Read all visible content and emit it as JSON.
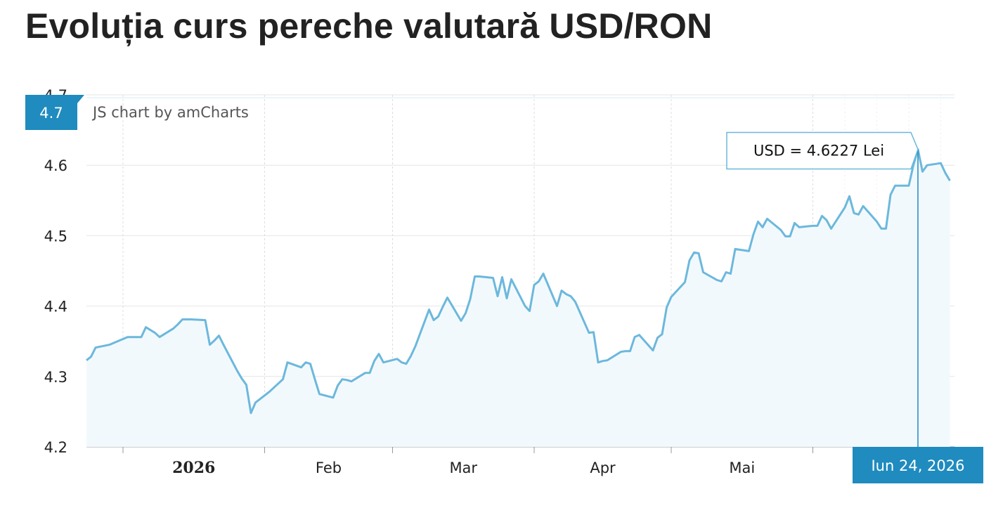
{
  "title": "Evoluția curs pereche valutară USD/RON",
  "credit": "JS chart by amCharts",
  "colors": {
    "line": "#6cb8dc",
    "fill": "#f2f9fd",
    "cursor": "#1f8bbf",
    "grid": "#e6e6e6",
    "axis": "#999999"
  },
  "chart_data": {
    "type": "area",
    "title": "Evoluția curs pereche valutară USD/RON",
    "xlabel": "",
    "ylabel": "",
    "ylim": [
      4.2,
      4.7
    ],
    "y_ticks": [
      4.2,
      4.3,
      4.4,
      4.5,
      4.6,
      4.7
    ],
    "y_tick_labels": [
      "4.2",
      "4.3",
      "4.4",
      "4.5",
      "4.6",
      "4.7"
    ],
    "xlim": [
      "2025-12-24",
      "2026-07-02"
    ],
    "x_ticks": [
      {
        "date": "2026-01-01",
        "label": "2026",
        "bold": true
      },
      {
        "date": "2026-02-01",
        "label": "Feb",
        "bold": false
      },
      {
        "date": "2026-03-01",
        "label": "Mar",
        "bold": false
      },
      {
        "date": "2026-04-01",
        "label": "Apr",
        "bold": false
      },
      {
        "date": "2026-05-01",
        "label": "Mai",
        "bold": false
      },
      {
        "date": "2026-06-01",
        "label": "Iun",
        "bold": false
      }
    ],
    "grid": true,
    "series": [
      {
        "name": "USD",
        "x": [
          "2025-12-24",
          "2025-12-25",
          "2025-12-26",
          "2025-12-29",
          "2026-01-02",
          "2026-01-05",
          "2026-01-06",
          "2026-01-08",
          "2026-01-09",
          "2026-01-12",
          "2026-01-13",
          "2026-01-14",
          "2026-01-15",
          "2026-01-16",
          "2026-01-19",
          "2026-01-20",
          "2026-01-21",
          "2026-01-22",
          "2026-01-23",
          "2026-01-26",
          "2026-01-27",
          "2026-01-28",
          "2026-01-29",
          "2026-01-30",
          "2026-02-02",
          "2026-02-03",
          "2026-02-04",
          "2026-02-05",
          "2026-02-06",
          "2026-02-09",
          "2026-02-10",
          "2026-02-11",
          "2026-02-12",
          "2026-02-13",
          "2026-02-16",
          "2026-02-17",
          "2026-02-18",
          "2026-02-19",
          "2026-02-20",
          "2026-02-23",
          "2026-02-24",
          "2026-02-25",
          "2026-02-26",
          "2026-02-27",
          "2026-03-02",
          "2026-03-03",
          "2026-03-04",
          "2026-03-05",
          "2026-03-06",
          "2026-03-09",
          "2026-03-10",
          "2026-03-11",
          "2026-03-12",
          "2026-03-13",
          "2026-03-16",
          "2026-03-17",
          "2026-03-18",
          "2026-03-19",
          "2026-03-20",
          "2026-03-23",
          "2026-03-24",
          "2026-03-25",
          "2026-03-26",
          "2026-03-27",
          "2026-03-30",
          "2026-03-31",
          "2026-04-01",
          "2026-04-02",
          "2026-04-03",
          "2026-04-06",
          "2026-04-07",
          "2026-04-08",
          "2026-04-09",
          "2026-04-10",
          "2026-04-13",
          "2026-04-14",
          "2026-04-15",
          "2026-04-16",
          "2026-04-17",
          "2026-04-20",
          "2026-04-21",
          "2026-04-22",
          "2026-04-23",
          "2026-04-24",
          "2026-04-27",
          "2026-04-28",
          "2026-04-29",
          "2026-04-30",
          "2026-05-01",
          "2026-05-04",
          "2026-05-05",
          "2026-05-06",
          "2026-05-07",
          "2026-05-08",
          "2026-05-11",
          "2026-05-12",
          "2026-05-13",
          "2026-05-14",
          "2026-05-15",
          "2026-05-18",
          "2026-05-19",
          "2026-05-20",
          "2026-05-21",
          "2026-05-22",
          "2026-05-25",
          "2026-05-26",
          "2026-05-27",
          "2026-05-28",
          "2026-05-29",
          "2026-06-01",
          "2026-06-02",
          "2026-06-03",
          "2026-06-04",
          "2026-06-05",
          "2026-06-08",
          "2026-06-09",
          "2026-06-10",
          "2026-06-11",
          "2026-06-12",
          "2026-06-15",
          "2026-06-16",
          "2026-06-17",
          "2026-06-18",
          "2026-06-19",
          "2026-06-22",
          "2026-06-23",
          "2026-06-24",
          "2026-06-25",
          "2026-06-26",
          "2026-06-29",
          "2026-06-30",
          "2026-07-01"
        ],
        "values": [
          4.323,
          4.328,
          4.341,
          4.345,
          4.356,
          4.356,
          4.37,
          4.362,
          4.356,
          4.368,
          4.374,
          4.381,
          4.381,
          4.381,
          4.38,
          4.345,
          4.351,
          4.358,
          4.345,
          4.308,
          4.297,
          4.288,
          4.248,
          4.263,
          4.278,
          4.284,
          4.29,
          4.296,
          4.32,
          4.313,
          4.32,
          4.318,
          4.296,
          4.275,
          4.27,
          4.287,
          4.296,
          4.295,
          4.293,
          4.305,
          4.305,
          4.322,
          4.332,
          4.32,
          4.325,
          4.32,
          4.318,
          4.329,
          4.343,
          4.395,
          4.38,
          4.385,
          4.399,
          4.412,
          4.379,
          4.39,
          4.41,
          4.442,
          4.442,
          4.44,
          4.414,
          4.441,
          4.411,
          4.438,
          4.4,
          4.393,
          4.43,
          4.435,
          4.446,
          4.4,
          4.422,
          4.417,
          4.414,
          4.406,
          4.362,
          4.363,
          4.32,
          4.322,
          4.323,
          4.335,
          4.336,
          4.336,
          4.356,
          4.359,
          4.337,
          4.355,
          4.36,
          4.398,
          4.413,
          4.434,
          4.465,
          4.476,
          4.475,
          4.448,
          4.437,
          4.435,
          4.448,
          4.446,
          4.481,
          4.478,
          4.502,
          4.52,
          4.512,
          4.524,
          4.508,
          4.499,
          4.499,
          4.518,
          4.512,
          4.514,
          4.514,
          4.528,
          4.522,
          4.51,
          4.54,
          4.556,
          4.532,
          4.53,
          4.542,
          4.52,
          4.51,
          4.51,
          4.558,
          4.571,
          4.571,
          4.6,
          4.6227,
          4.591,
          4.6,
          4.603,
          4.589,
          4.578
        ]
      }
    ],
    "cursor": {
      "date_label": "Iun 24, 2026",
      "balloon": "USD = 4.6227 Lei",
      "value_label": "4.7"
    }
  }
}
